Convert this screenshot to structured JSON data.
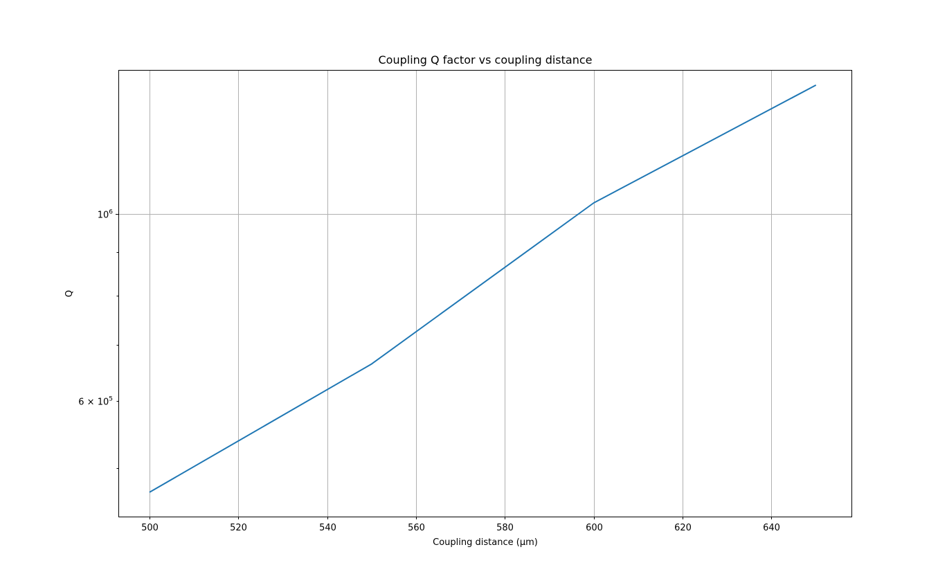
{
  "chart_data": {
    "type": "line",
    "title": "Coupling Q factor vs coupling distance",
    "xlabel": "Coupling distance (µm)",
    "ylabel": "Q",
    "yscale": "log",
    "grid": true,
    "xlim": [
      493,
      658
    ],
    "ylim": [
      438000,
      1480000
    ],
    "x_ticks": [
      500,
      520,
      540,
      560,
      580,
      600,
      620,
      640
    ],
    "y_major_ticks": [
      {
        "value": 1000000,
        "base": "10",
        "exp": "6"
      }
    ],
    "y_minor_ticks": [
      {
        "value": 500000,
        "label": ""
      },
      {
        "value": 600000,
        "base": "6 × 10",
        "exp": "5"
      },
      {
        "value": 700000,
        "label": ""
      },
      {
        "value": 800000,
        "label": ""
      },
      {
        "value": 900000,
        "label": ""
      }
    ],
    "series": [
      {
        "color": "#1f77b4",
        "x": [
          500,
          550,
          600,
          650
        ],
        "y": [
          468000,
          664000,
          1030000,
          1420000
        ]
      }
    ]
  }
}
